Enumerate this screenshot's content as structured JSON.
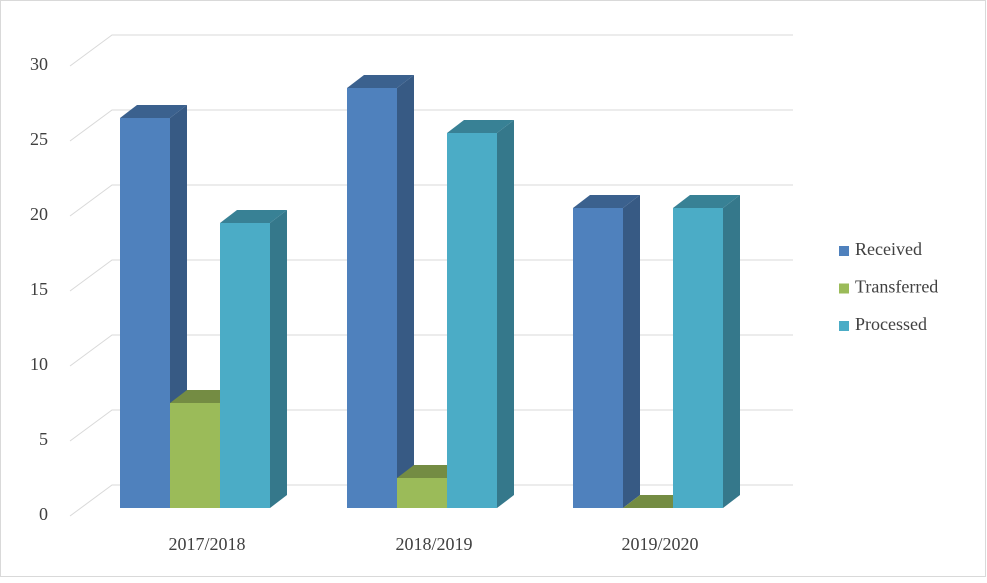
{
  "chart_data": {
    "type": "bar3d",
    "categories": [
      "2017/2018",
      "2018/2019",
      "2019/2020"
    ],
    "series": [
      {
        "name": "Received",
        "color": "#4f81bd",
        "values": [
          26,
          28,
          20
        ]
      },
      {
        "name": "Transferred",
        "color": "#9bbb59",
        "values": [
          7,
          2,
          0
        ]
      },
      {
        "name": "Processed",
        "color": "#4bacc6",
        "values": [
          19,
          25,
          20
        ]
      }
    ],
    "ylim": [
      0,
      30
    ],
    "yticks": [
      0,
      5,
      10,
      15,
      20,
      25,
      30
    ],
    "grid": true,
    "legend": "right"
  }
}
